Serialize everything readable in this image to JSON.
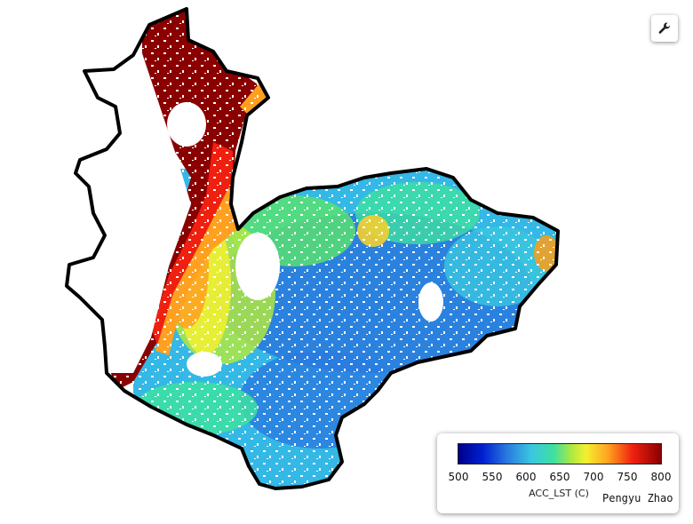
{
  "map": {
    "layer": "ACC_LST (C)",
    "basemap_color": "#ffffff",
    "boundary_color": "#000000"
  },
  "toolbar": {
    "tool_icon": "wrench-icon"
  },
  "legend": {
    "title": "ACC_LST (C)",
    "min": 500,
    "max": 800,
    "ticks": [
      "500",
      "550",
      "600",
      "650",
      "700",
      "750",
      "800"
    ],
    "colors": [
      "#00008c",
      "#2a7ae0",
      "#3ac7e0",
      "#3ee0a0",
      "#f4f030",
      "#ffa020",
      "#f02010",
      "#8a0000"
    ],
    "author": "Pengyu  Zhao"
  }
}
